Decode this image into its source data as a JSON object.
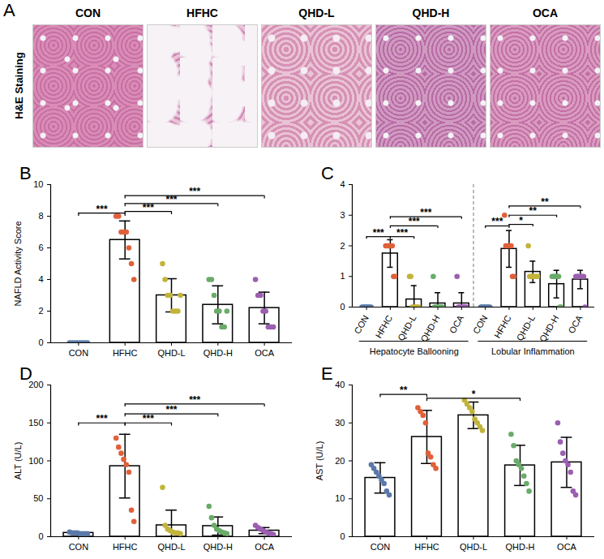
{
  "image_panel": {
    "panel": "A",
    "row_label": "H&E Staining",
    "columns": [
      "CON",
      "HFHC",
      "QHD-L",
      "QHD-H",
      "OCA"
    ]
  },
  "chart_data": [
    {
      "panel": "B",
      "type": "bar",
      "y_label": "NAFLD Activity Score",
      "categories": [
        "CON",
        "HFHC",
        "QHD-L",
        "QHD-H",
        "OCA"
      ],
      "values": [
        0,
        6.5,
        3.0,
        2.4,
        2.2
      ],
      "error": [
        0.05,
        1.2,
        1.05,
        1.2,
        1.0
      ],
      "points": [
        [
          0,
          0,
          0,
          0,
          0,
          0,
          0,
          0
        ],
        [
          8,
          8,
          7,
          7,
          7,
          6,
          5,
          4
        ],
        [
          5,
          4,
          3,
          3,
          2,
          2,
          2,
          3
        ],
        [
          4,
          4,
          3,
          2,
          2,
          1,
          1,
          2
        ],
        [
          4,
          3,
          3,
          2,
          2,
          1,
          1,
          1
        ]
      ],
      "colors": [
        "#5b79a8",
        "#e0603a",
        "#c2b43a",
        "#6aab6a",
        "#9b5fb0"
      ],
      "ylim": [
        0,
        10
      ],
      "yticks": [
        0,
        2,
        4,
        6,
        8,
        10
      ],
      "annotations": [
        {
          "from": 0,
          "to": 1,
          "y": 8.2,
          "label": "***"
        },
        {
          "from": 1,
          "to": 2,
          "y": 8.3,
          "label": "***"
        },
        {
          "from": 1,
          "to": 3,
          "y": 8.8,
          "label": "***"
        },
        {
          "from": 1,
          "to": 4,
          "y": 9.3,
          "label": "***"
        }
      ]
    },
    {
      "panel": "C",
      "type": "bar",
      "categories": [
        "CON",
        "HFHC",
        "QHD-L",
        "QHD-H",
        "OCA",
        "CON",
        "HFHC",
        "QHD-L",
        "QHD-H",
        "OCA"
      ],
      "groups": [
        {
          "label": "Hepatocyte Ballooning",
          "from": 0,
          "to": 4
        },
        {
          "label": "Lobular Inflammation",
          "from": 5,
          "to": 9
        }
      ],
      "values": [
        0,
        1.75,
        0.25,
        0.12,
        0.12,
        0,
        1.9,
        1.15,
        0.75,
        0.9
      ],
      "error": [
        0.02,
        0.45,
        0.45,
        0.35,
        0.35,
        0.02,
        0.6,
        0.35,
        0.45,
        0.3
      ],
      "points": [
        [
          0,
          0,
          0,
          0,
          0,
          0,
          0,
          0
        ],
        [
          2,
          2,
          2,
          2,
          2,
          2,
          1,
          1
        ],
        [
          1,
          1,
          0,
          0,
          0,
          0,
          0,
          0
        ],
        [
          1,
          0,
          0,
          0,
          0,
          0,
          0,
          0
        ],
        [
          1,
          0,
          0,
          0,
          0,
          0,
          0,
          0
        ],
        [
          0,
          0,
          0,
          0,
          0,
          0,
          0,
          0
        ],
        [
          3,
          2,
          2,
          2,
          2,
          2,
          1,
          1
        ],
        [
          2,
          1,
          1,
          1,
          1,
          1,
          1,
          1
        ],
        [
          1,
          1,
          1,
          1,
          1,
          1,
          0,
          0
        ],
        [
          1,
          1,
          1,
          1,
          1,
          1,
          1,
          0
        ]
      ],
      "colors": [
        "#5b79a8",
        "#e0603a",
        "#c2b43a",
        "#6aab6a",
        "#9b5fb0",
        "#5b79a8",
        "#e0603a",
        "#c2b43a",
        "#6aab6a",
        "#9b5fb0"
      ],
      "ylim": [
        0,
        4
      ],
      "yticks": [
        0,
        1,
        2,
        3,
        4
      ],
      "annotations": [
        {
          "from": 0,
          "to": 1,
          "y": 2.3,
          "label": "***"
        },
        {
          "from": 1,
          "to": 2,
          "y": 2.3,
          "label": "***"
        },
        {
          "from": 1,
          "to": 3,
          "y": 2.65,
          "label": "***"
        },
        {
          "from": 1,
          "to": 4,
          "y": 2.95,
          "label": "***"
        },
        {
          "from": 5,
          "to": 6,
          "y": 2.65,
          "label": "***"
        },
        {
          "from": 6,
          "to": 7,
          "y": 2.7,
          "label": "*"
        },
        {
          "from": 6,
          "to": 8,
          "y": 3.0,
          "label": "**"
        },
        {
          "from": 6,
          "to": 9,
          "y": 3.3,
          "label": "**"
        }
      ]
    },
    {
      "panel": "D",
      "type": "bar",
      "y_label": "ALT (U/L)",
      "categories": [
        "CON",
        "HFHC",
        "QHD-L",
        "QHD-H",
        "OCA"
      ],
      "values": [
        5,
        93,
        15,
        14,
        8
      ],
      "error": [
        1,
        42,
        20,
        12,
        4
      ],
      "points": [
        [
          6,
          5,
          5,
          5,
          4,
          4,
          4,
          4
        ],
        [
          130,
          118,
          110,
          102,
          95,
          85,
          35,
          20
        ],
        [
          65,
          15,
          10,
          8,
          6,
          5,
          5,
          4
        ],
        [
          40,
          25,
          15,
          10,
          8,
          6,
          5,
          4
        ],
        [
          15,
          12,
          10,
          8,
          6,
          5,
          4,
          3
        ]
      ],
      "colors": [
        "#5b79a8",
        "#e0603a",
        "#c2b43a",
        "#6aab6a",
        "#9b5fb0"
      ],
      "ylim": [
        0,
        200
      ],
      "yticks": [
        0,
        50,
        100,
        150,
        200
      ],
      "annotations": [
        {
          "from": 0,
          "to": 1,
          "y": 150,
          "label": "***"
        },
        {
          "from": 1,
          "to": 2,
          "y": 150,
          "label": "***"
        },
        {
          "from": 1,
          "to": 3,
          "y": 162,
          "label": "***"
        },
        {
          "from": 1,
          "to": 4,
          "y": 175,
          "label": "***"
        }
      ]
    },
    {
      "panel": "E",
      "type": "bar",
      "y_label": "AST (U/L)",
      "categories": [
        "CON",
        "HFHC",
        "QHD-L",
        "QHD-H",
        "OCA"
      ],
      "values": [
        15.5,
        26.3,
        32,
        18.8,
        19.6
      ],
      "error": [
        4,
        7,
        3.5,
        5.3,
        6.6
      ],
      "points": [
        [
          19,
          18,
          17,
          16,
          15,
          14,
          12,
          11
        ],
        [
          34,
          33,
          32,
          30,
          22,
          21,
          19,
          18
        ],
        [
          36,
          35,
          34,
          33,
          31,
          30,
          29,
          28
        ],
        [
          27,
          24,
          20,
          19,
          18,
          16,
          14,
          12
        ],
        [
          30,
          25,
          22,
          20,
          19,
          17,
          12,
          11
        ]
      ],
      "colors": [
        "#5b79a8",
        "#e0603a",
        "#c2b43a",
        "#6aab6a",
        "#9b5fb0"
      ],
      "ylim": [
        0,
        40
      ],
      "yticks": [
        0,
        10,
        20,
        30,
        40
      ],
      "annotations": [
        {
          "from": 0,
          "to": 1,
          "y": 37.5,
          "label": "**"
        },
        {
          "from": 1,
          "to": 3,
          "y": 36.5,
          "label": "*"
        }
      ]
    }
  ]
}
